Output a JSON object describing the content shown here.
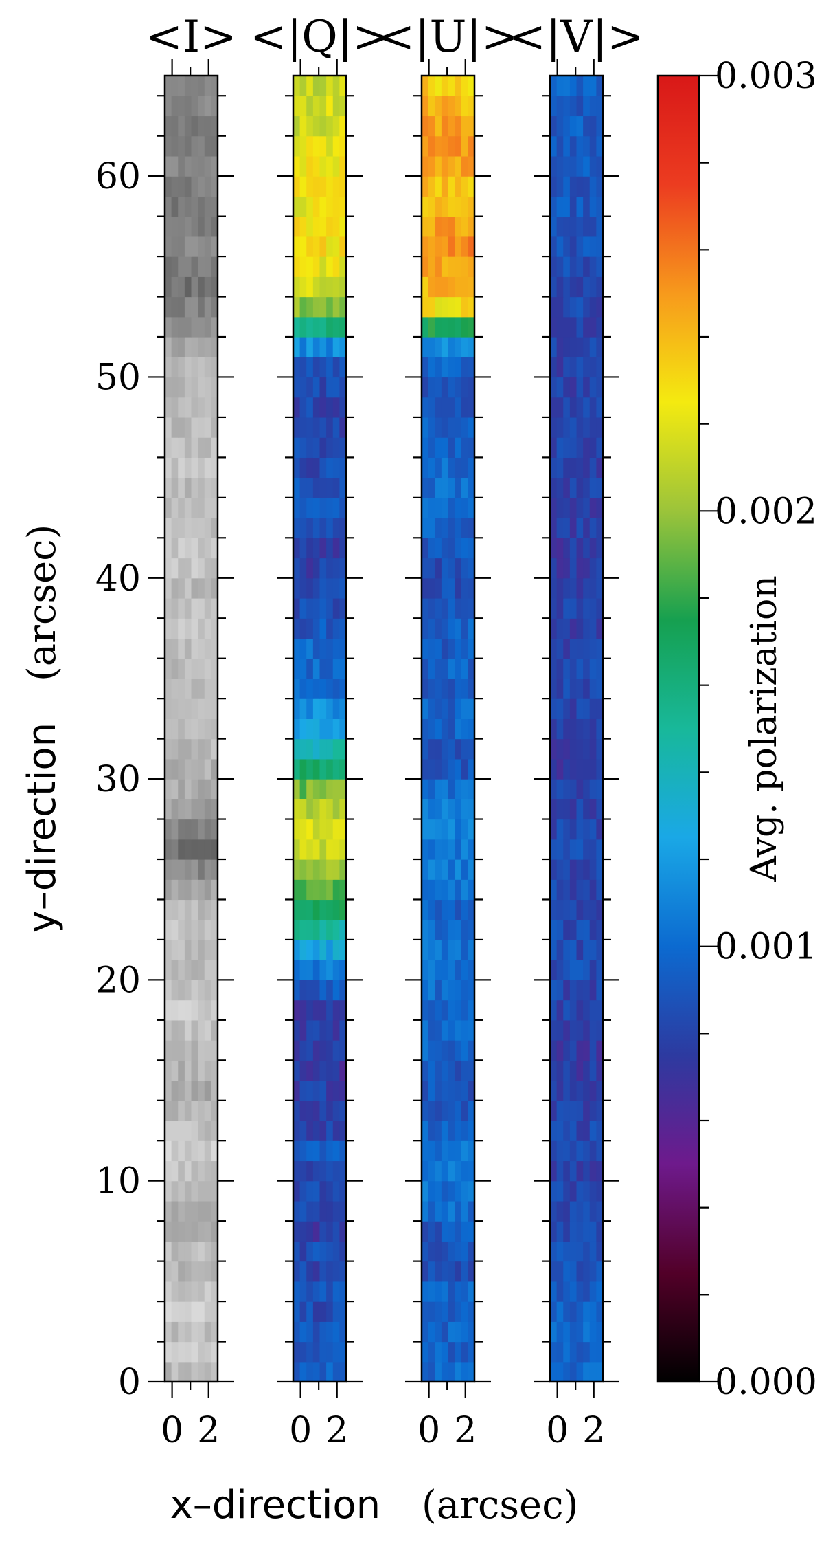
{
  "chart_data": {
    "type": "heatmap",
    "panels": [
      {
        "title": "<I>",
        "colormap": "gray",
        "profile": [
          0.7,
          0.8,
          0.72,
          0.8,
          0.75,
          0.68,
          0.72,
          0.62,
          0.58,
          0.7,
          0.76,
          0.8,
          0.74,
          0.7,
          0.62,
          0.66,
          0.7,
          0.74,
          0.78,
          0.72,
          0.68,
          0.7,
          0.75,
          0.72,
          0.6,
          0.42,
          0.3,
          0.4,
          0.55,
          0.62,
          0.64,
          0.7,
          0.68,
          0.72,
          0.66,
          0.7,
          0.72,
          0.76,
          0.74,
          0.7,
          0.76,
          0.78,
          0.72,
          0.74,
          0.7,
          0.76,
          0.72,
          0.7,
          0.74,
          0.7,
          0.66,
          0.6,
          0.5,
          0.4,
          0.3,
          0.36,
          0.42,
          0.34,
          0.32,
          0.38,
          0.42,
          0.36,
          0.32,
          0.42,
          0.45
        ]
      },
      {
        "title": "<|Q|>",
        "colormap": "polarization",
        "profile": [
          0.32,
          0.3,
          0.3,
          0.28,
          0.3,
          0.27,
          0.28,
          0.25,
          0.27,
          0.28,
          0.28,
          0.3,
          0.27,
          0.26,
          0.26,
          0.24,
          0.26,
          0.25,
          0.24,
          0.3,
          0.36,
          0.42,
          0.5,
          0.58,
          0.62,
          0.66,
          0.7,
          0.72,
          0.7,
          0.64,
          0.56,
          0.48,
          0.42,
          0.38,
          0.34,
          0.33,
          0.33,
          0.3,
          0.28,
          0.28,
          0.26,
          0.26,
          0.3,
          0.3,
          0.3,
          0.28,
          0.28,
          0.27,
          0.27,
          0.28,
          0.3,
          0.38,
          0.52,
          0.66,
          0.72,
          0.74,
          0.76,
          0.76,
          0.74,
          0.76,
          0.75,
          0.74,
          0.72,
          0.72,
          0.7
        ]
      },
      {
        "title": "<|U|>",
        "colormap": "polarization",
        "profile": [
          0.33,
          0.32,
          0.32,
          0.3,
          0.32,
          0.29,
          0.3,
          0.3,
          0.33,
          0.34,
          0.34,
          0.35,
          0.32,
          0.3,
          0.3,
          0.3,
          0.32,
          0.32,
          0.32,
          0.33,
          0.33,
          0.34,
          0.34,
          0.32,
          0.34,
          0.35,
          0.35,
          0.36,
          0.36,
          0.33,
          0.3,
          0.3,
          0.32,
          0.32,
          0.3,
          0.32,
          0.31,
          0.32,
          0.3,
          0.28,
          0.28,
          0.3,
          0.32,
          0.32,
          0.33,
          0.33,
          0.32,
          0.32,
          0.3,
          0.3,
          0.32,
          0.38,
          0.58,
          0.76,
          0.8,
          0.82,
          0.85,
          0.82,
          0.8,
          0.8,
          0.82,
          0.84,
          0.82,
          0.8,
          0.78
        ]
      },
      {
        "title": "<|V|>",
        "colormap": "polarization",
        "profile": [
          0.33,
          0.32,
          0.33,
          0.31,
          0.3,
          0.29,
          0.29,
          0.28,
          0.27,
          0.27,
          0.26,
          0.27,
          0.27,
          0.26,
          0.25,
          0.25,
          0.25,
          0.26,
          0.26,
          0.27,
          0.28,
          0.28,
          0.28,
          0.27,
          0.27,
          0.27,
          0.28,
          0.27,
          0.27,
          0.26,
          0.25,
          0.26,
          0.26,
          0.27,
          0.27,
          0.27,
          0.27,
          0.26,
          0.26,
          0.25,
          0.25,
          0.25,
          0.26,
          0.26,
          0.26,
          0.26,
          0.27,
          0.27,
          0.26,
          0.26,
          0.26,
          0.27,
          0.27,
          0.27,
          0.28,
          0.28,
          0.29,
          0.3,
          0.3,
          0.3,
          0.31,
          0.3,
          0.31,
          0.3,
          0.32
        ]
      }
    ],
    "profile_y_start": 0,
    "profile_y_step": 1,
    "profile_note": "",
    "x_range": [
      -0.4,
      2.5
    ],
    "y_range": [
      0,
      65
    ],
    "x_ticks": [
      0,
      2
    ],
    "y_ticks": [
      0,
      10,
      20,
      30,
      40,
      50,
      60
    ],
    "xlabel_word": "x–direction",
    "xlabel_unit": "(arcsec)",
    "ylabel_word": "y–direction",
    "ylabel_unit": "(arcsec)",
    "colorbar": {
      "label": "Avg. polarization",
      "range": [
        0.0,
        0.003
      ],
      "ticks": [
        "0.003",
        "0.002",
        "0.001",
        "0.000"
      ],
      "stops": [
        "#000000",
        "#520028",
        "#6e1a8c",
        "#2d3aa0",
        "#0c6ad0",
        "#1aa8e6",
        "#18b89a",
        "#16a050",
        "#9cc43a",
        "#f4ea10",
        "#f79a1c",
        "#ec3c20",
        "#d81818"
      ]
    }
  }
}
